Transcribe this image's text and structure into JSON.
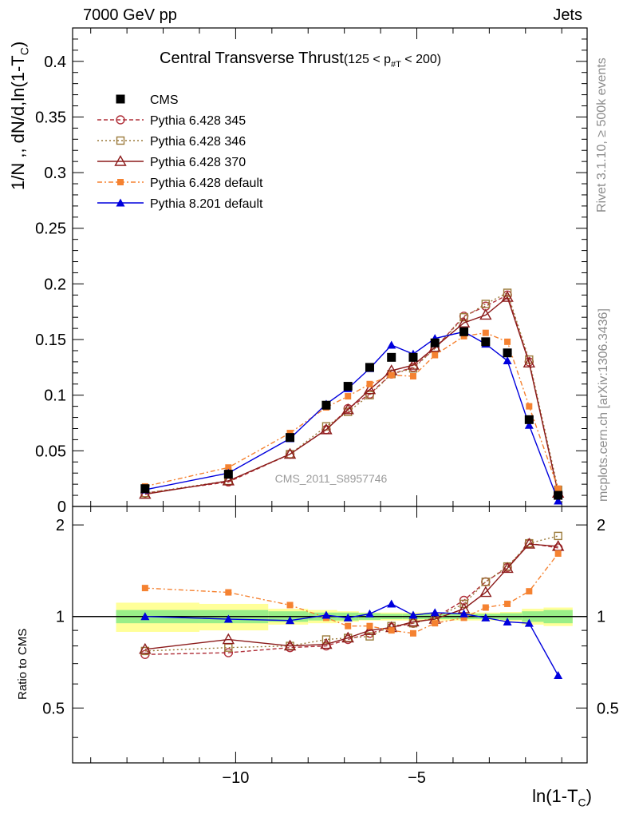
{
  "header": {
    "left": "7000 GeV pp",
    "right": "Jets"
  },
  "side_labels": {
    "rivet": "Rivet 3.1.10, ≥ 500k events",
    "mcplots": "mcplots.cern.ch [arXiv:1306.3436]"
  },
  "watermark": "CMS_2011_S8957746",
  "chart_data": {
    "type": "line",
    "title": "Central Transverse Thrust",
    "title_suffix": "(125 < p",
    "title_sub": "#T",
    "title_suffix2": " < 200)",
    "xlabel": "ln(1-T",
    "xlabel_sub": "C",
    "xlabel_end": ")",
    "ylabel": "1/N ,, dN/d,ln(1-T",
    "ylabel_sub": "C",
    "ylabel_end": ")",
    "ratio_ylabel": "Ratio to CMS",
    "xlim": [
      -14.5,
      -0.3
    ],
    "ylim": [
      0,
      0.43
    ],
    "ratio_ylim": [
      0.33,
      2.3
    ],
    "x_ticks": [
      -10,
      -5
    ],
    "x_tick_labels": [
      "−10",
      "−5"
    ],
    "y_ticks": [
      0,
      0.05,
      0.1,
      0.15,
      0.2,
      0.25,
      0.3,
      0.35,
      0.4
    ],
    "y_tick_labels": [
      "0",
      "0.05",
      "0.1",
      "0.15",
      "0.2",
      "0.25",
      "0.3",
      "0.35",
      "0.4"
    ],
    "ratio_ticks": [
      0.5,
      1,
      2
    ],
    "ratio_tick_labels": [
      "0.5",
      "1",
      "2"
    ],
    "x": [
      -12.5,
      -10.2,
      -8.5,
      -7.5,
      -6.9,
      -6.3,
      -5.7,
      -5.1,
      -4.5,
      -3.7,
      -3.1,
      -2.5,
      -1.9,
      -1.1
    ],
    "band_edges": [
      -13.3,
      -11.0,
      -9.1,
      -8.0,
      -7.2,
      -6.6,
      -6.0,
      -5.4,
      -4.8,
      -4.1,
      -3.4,
      -2.7,
      -2.1,
      -1.5,
      -0.7
    ],
    "band_inner": [
      0.05,
      0.05,
      0.04,
      0.03,
      0.03,
      0.025,
      0.02,
      0.02,
      0.02,
      0.02,
      0.02,
      0.025,
      0.04,
      0.05
    ],
    "band_outer": [
      0.11,
      0.1,
      0.06,
      0.05,
      0.04,
      0.03,
      0.03,
      0.03,
      0.03,
      0.03,
      0.03,
      0.035,
      0.06,
      0.07
    ],
    "legend_position": "top-left",
    "series": [
      {
        "name": "CMS",
        "color": "#000000",
        "marker": "square-filled",
        "dash": "",
        "connect": false,
        "values": [
          0.016,
          0.029,
          0.062,
          0.091,
          0.108,
          0.125,
          0.134,
          0.134,
          0.147,
          0.157,
          0.148,
          0.138,
          0.078,
          0.01
        ],
        "ratio": [
          1,
          1,
          1,
          1,
          1,
          1,
          1,
          1,
          1,
          1,
          1,
          1,
          1,
          1
        ]
      },
      {
        "name": "Pythia 6.428 345",
        "color": "#b0303a",
        "marker": "circle-open",
        "dash": "5,3",
        "connect": true,
        "values": [
          0.012,
          0.022,
          0.047,
          0.069,
          0.088,
          0.101,
          0.119,
          0.125,
          0.142,
          0.171,
          0.18,
          0.19,
          0.13,
          0.012
        ],
        "ratio": [
          0.75,
          0.76,
          0.79,
          0.8,
          0.84,
          0.88,
          0.92,
          0.95,
          0.99,
          1.13,
          1.3,
          1.45,
          1.74,
          1.68
        ]
      },
      {
        "name": "Pythia 6.428 346",
        "color": "#9b7a3a",
        "marker": "square-open",
        "dash": "2,3",
        "connect": true,
        "values": [
          0.012,
          0.023,
          0.047,
          0.072,
          0.085,
          0.1,
          0.119,
          0.124,
          0.142,
          0.17,
          0.182,
          0.192,
          0.132,
          0.015
        ],
        "ratio": [
          0.77,
          0.79,
          0.8,
          0.84,
          0.85,
          0.86,
          0.93,
          0.95,
          0.99,
          1.1,
          1.3,
          1.46,
          1.74,
          1.84
        ]
      },
      {
        "name": "Pythia 6.428 370",
        "color": "#8b1a1a",
        "marker": "triangle-open",
        "dash": "",
        "connect": true,
        "values": [
          0.011,
          0.023,
          0.047,
          0.069,
          0.087,
          0.105,
          0.122,
          0.127,
          0.143,
          0.165,
          0.172,
          0.188,
          0.129,
          0.012
        ],
        "ratio": [
          0.78,
          0.84,
          0.8,
          0.81,
          0.85,
          0.9,
          0.92,
          0.96,
          0.98,
          1.06,
          1.2,
          1.44,
          1.73,
          1.7
        ]
      },
      {
        "name": "Pythia 6.428 default",
        "color": "#f58231",
        "marker": "square-filled-small",
        "dash": "6,3,2,3",
        "connect": true,
        "values": [
          0.018,
          0.035,
          0.066,
          0.089,
          0.099,
          0.11,
          0.118,
          0.117,
          0.136,
          0.153,
          0.156,
          0.148,
          0.09,
          0.016
        ],
        "ratio": [
          1.24,
          1.2,
          1.09,
          0.99,
          0.93,
          0.93,
          0.9,
          0.88,
          0.95,
          0.99,
          1.07,
          1.1,
          1.21,
          1.61
        ]
      },
      {
        "name": "Pythia 8.201 default",
        "color": "#0000dd",
        "marker": "triangle-filled",
        "dash": "",
        "connect": true,
        "values": [
          0.015,
          0.03,
          0.061,
          0.092,
          0.106,
          0.124,
          0.145,
          0.137,
          0.151,
          0.157,
          0.146,
          0.131,
          0.073,
          0.005
        ],
        "ratio": [
          1.0,
          0.98,
          0.97,
          1.01,
          0.99,
          1.02,
          1.1,
          1.01,
          1.03,
          1.02,
          0.99,
          0.96,
          0.95,
          0.64
        ]
      }
    ]
  }
}
